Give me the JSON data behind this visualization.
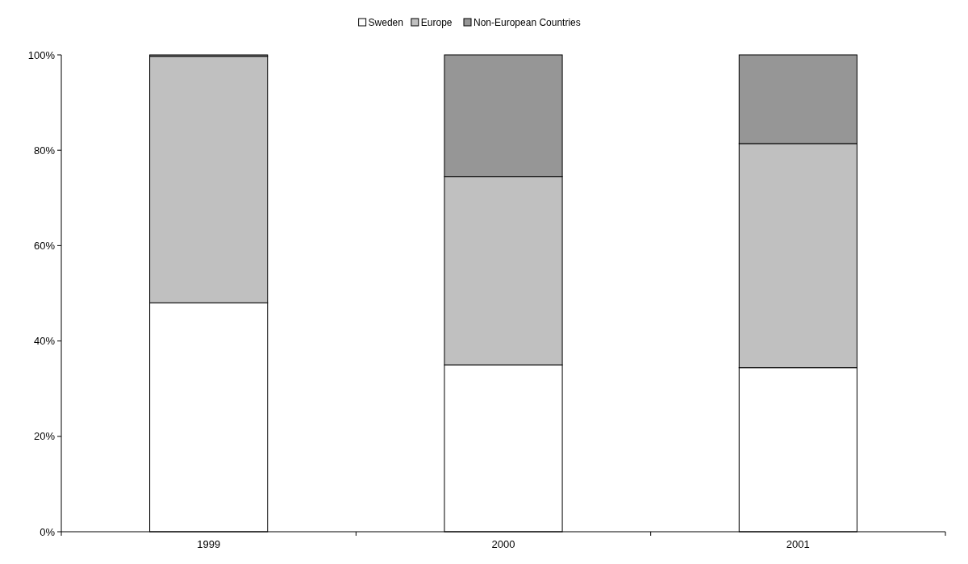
{
  "chart_data": {
    "type": "bar",
    "stacked": true,
    "categories": [
      "1999",
      "2000",
      "2001"
    ],
    "series": [
      {
        "name": "Sweden",
        "color": "#ffffff",
        "values": [
          48,
          35,
          34.4
        ]
      },
      {
        "name": "Europe",
        "color": "#c0c0c0",
        "values": [
          51.7,
          39.5,
          47
        ]
      },
      {
        "name": "Non-European Countries",
        "color": "#969696",
        "values": [
          0.3,
          25.5,
          18.6
        ]
      }
    ],
    "ylim": [
      0,
      100
    ],
    "yticks": [
      {
        "value": 0,
        "label": "0%"
      },
      {
        "value": 20,
        "label": "20%"
      },
      {
        "value": 40,
        "label": "40%"
      },
      {
        "value": 60,
        "label": "60%"
      },
      {
        "value": 80,
        "label": "80%"
      },
      {
        "value": 100,
        "label": "100%"
      }
    ],
    "legend": "top",
    "grid": false
  }
}
